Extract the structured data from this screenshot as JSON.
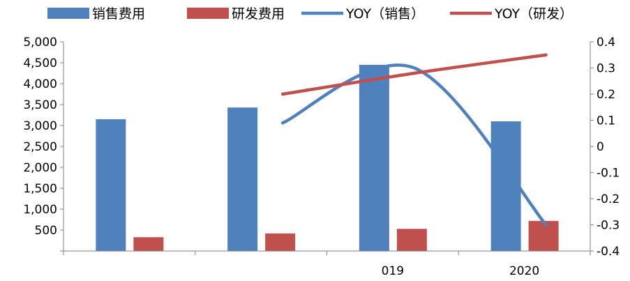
{
  "chart_data": {
    "type": "bar",
    "categories": [
      "",
      "",
      "019",
      "2020"
    ],
    "series": [
      {
        "name": "销售费用",
        "kind": "bar",
        "axis": "left",
        "color": "#4F81BD",
        "values": [
          3150,
          3430,
          4450,
          3100
        ]
      },
      {
        "name": "研发费用",
        "kind": "bar",
        "axis": "left",
        "color": "#C0504D",
        "values": [
          330,
          420,
          530,
          720
        ]
      },
      {
        "name": "YOY（销售）",
        "kind": "line",
        "axis": "right",
        "color": "#4F81BD",
        "values": [
          null,
          0.09,
          0.3,
          -0.3
        ]
      },
      {
        "name": "YOY（研发）",
        "kind": "line",
        "axis": "right",
        "color": "#C0504D",
        "values": [
          null,
          0.2,
          0.28,
          0.35
        ]
      }
    ],
    "y_left": {
      "ylim": [
        0,
        5000
      ],
      "ticks": [
        "500",
        "1,000",
        "1,500",
        "2,000",
        "2,500",
        "3,000",
        "3,500",
        "4,000",
        "4,500",
        "5,000"
      ]
    },
    "y_right": {
      "ylim": [
        -0.4,
        0.4
      ],
      "ticks": [
        "-0.4",
        "-0.3",
        "-0.2",
        "-0.1",
        "0",
        "0.1",
        "0.2",
        "0.3",
        "0.4"
      ]
    },
    "legend_position": "top",
    "grid": false
  }
}
